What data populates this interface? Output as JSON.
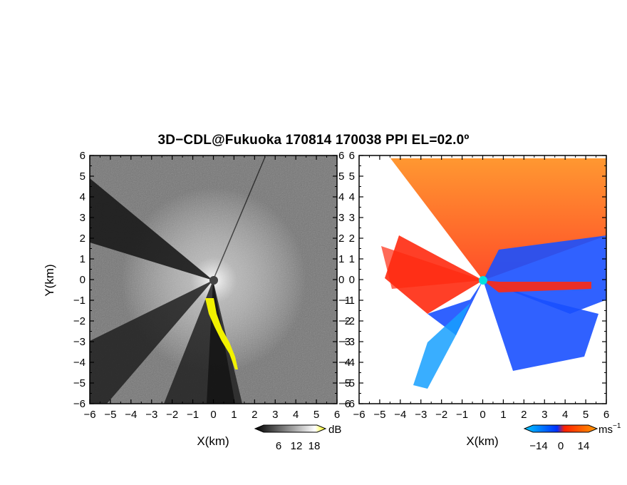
{
  "title": "3D−CDL@Fukuoka 170814 170038 PPI EL=02.0º",
  "chart_data": [
    {
      "type": "heatmap",
      "field": "reflectivity",
      "xlabel": "X(km)",
      "ylabel": "Y(km)",
      "xlim": [
        -6,
        6
      ],
      "ylim": [
        -6,
        6
      ],
      "xticks": [
        "−6",
        "−5",
        "−4",
        "−3",
        "−2",
        "−1",
        "0",
        "1",
        "2",
        "3",
        "4",
        "5",
        "6"
      ],
      "yticks": [
        "6",
        "5",
        "4",
        "3",
        "2",
        "1",
        "0",
        "−1",
        "−2",
        "−3",
        "−4",
        "−5",
        "−6"
      ],
      "colorbar": {
        "unit": "dB",
        "ticks": [
          "6",
          "12",
          "18"
        ],
        "colors": [
          "#000000",
          "#ffffff",
          "#ffff00"
        ]
      },
      "radar_site": [
        0,
        0
      ]
    },
    {
      "type": "heatmap",
      "field": "doppler_velocity",
      "xlabel": "X(km)",
      "ylabel": "",
      "xlim": [
        -6,
        6
      ],
      "ylim": [
        -6,
        6
      ],
      "xticks": [
        "−6",
        "−5",
        "−4",
        "−3",
        "−2",
        "−1",
        "0",
        "1",
        "2",
        "3",
        "4",
        "5",
        "6"
      ],
      "yticks": [
        "6",
        "5",
        "4",
        "3",
        "2",
        "1",
        "0",
        "−1",
        "−2",
        "−3",
        "−4",
        "−5",
        "−6"
      ],
      "colorbar": {
        "unit": "ms",
        "unit_exp": "−1",
        "ticks": [
          "−14",
          "0",
          "14"
        ],
        "colors": [
          "#00c8ff",
          "#0030ff",
          "#ff2000",
          "#ff8c00"
        ]
      },
      "radar_site": [
        0,
        0
      ]
    }
  ]
}
